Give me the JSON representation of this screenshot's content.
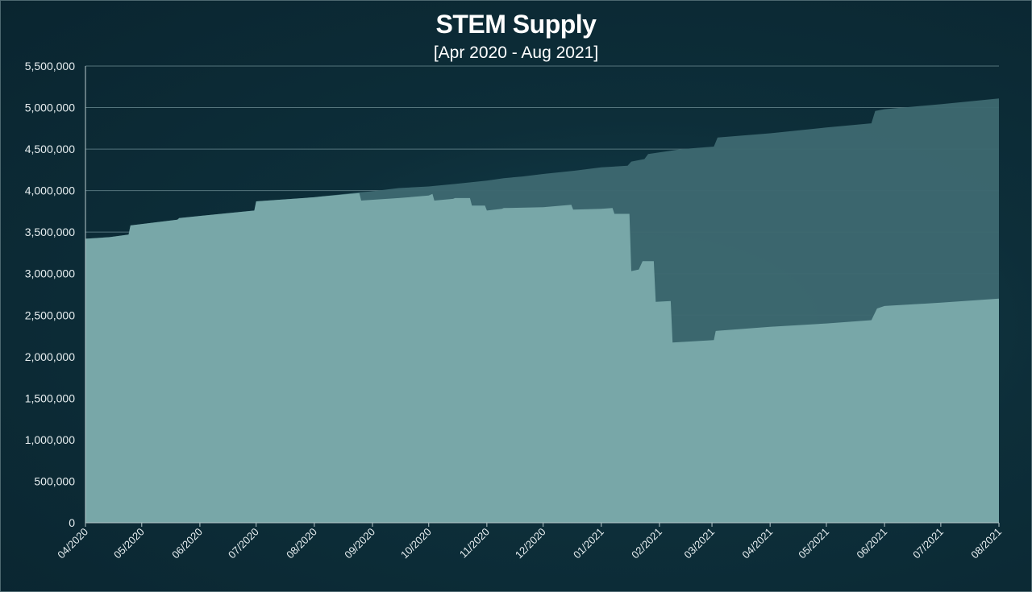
{
  "chart_data": {
    "type": "area",
    "title": "STEM Supply",
    "subtitle": "[Apr 2020 - Aug 2021]",
    "xlabel": "",
    "ylabel": "",
    "ylim": [
      0,
      5500000
    ],
    "yticks": [
      0,
      500000,
      1000000,
      1500000,
      2000000,
      2500000,
      3000000,
      3500000,
      4000000,
      4500000,
      5000000,
      5500000
    ],
    "ytick_labels": [
      "0",
      "500,000",
      "1,000,000",
      "1,500,000",
      "2,000,000",
      "2,500,000",
      "3,000,000",
      "3,500,000",
      "4,000,000",
      "4,500,000",
      "5,000,000",
      "5,500,000"
    ],
    "x_tick_labels": [
      "04/2020",
      "05/2020",
      "06/2020",
      "07/2020",
      "08/2020",
      "09/2020",
      "10/2020",
      "11/2020",
      "12/2020",
      "01/2021",
      "02/2021",
      "03/2021",
      "04/2021",
      "05/2021",
      "06/2021",
      "07/2021",
      "08/2021"
    ],
    "grid": true,
    "legend": "none",
    "colors": {
      "background": "#0c2b36",
      "front_area": "#7aa9aa",
      "back_area": "#3d6870",
      "grid": "#6e8e94",
      "text": "#ffffff"
    },
    "series": [
      {
        "x": [
          "2020-04-01",
          "2020-04-14",
          "2020-04-24",
          "2020-04-25",
          "2020-05-20",
          "2020-05-21",
          "2020-06-30",
          "2020-07-01",
          "2020-08-01",
          "2020-08-05",
          "2020-08-25",
          "2020-08-31",
          "2020-09-15",
          "2020-10-01",
          "2020-10-15",
          "2020-11-01",
          "2020-11-10",
          "2020-11-20",
          "2020-12-01",
          "2020-12-18",
          "2021-01-01",
          "2021-01-15",
          "2021-01-17",
          "2021-01-24",
          "2021-01-26",
          "2021-02-13",
          "2021-03-02",
          "2021-03-04",
          "2021-04-01",
          "2021-05-01",
          "2021-05-25",
          "2021-05-27",
          "2021-06-01",
          "2021-07-01",
          "2021-08-01"
        ],
        "values": [
          3420000,
          3440000,
          3470000,
          3580000,
          3650000,
          3670000,
          3760000,
          3870000,
          3920000,
          3930000,
          3980000,
          3990000,
          4030000,
          4050000,
          4080000,
          4120000,
          4150000,
          4170000,
          4200000,
          4240000,
          4280000,
          4300000,
          4350000,
          4380000,
          4440000,
          4500000,
          4530000,
          4640000,
          4690000,
          4760000,
          4810000,
          4960000,
          4980000,
          5040000,
          5110000
        ]
      },
      {
        "x": [
          "2020-04-01",
          "2020-04-14",
          "2020-04-24",
          "2020-04-25",
          "2020-05-20",
          "2020-05-21",
          "2020-06-30",
          "2020-07-01",
          "2020-08-01",
          "2020-08-05",
          "2020-08-25",
          "2020-08-26",
          "2020-09-15",
          "2020-10-01",
          "2020-10-03",
          "2020-10-04",
          "2020-10-14",
          "2020-10-15",
          "2020-10-23",
          "2020-10-24",
          "2020-10-31",
          "2020-11-01",
          "2020-11-09",
          "2020-11-10",
          "2020-12-01",
          "2020-12-16",
          "2020-12-17",
          "2021-01-01",
          "2021-01-07",
          "2021-01-08",
          "2021-01-16",
          "2021-01-17",
          "2021-01-21",
          "2021-01-23",
          "2021-01-29",
          "2021-01-30",
          "2021-02-07",
          "2021-02-08",
          "2021-03-02",
          "2021-03-03",
          "2021-04-01",
          "2021-05-01",
          "2021-05-25",
          "2021-05-28",
          "2021-06-01",
          "2021-07-01",
          "2021-08-01"
        ],
        "values": [
          3420000,
          3440000,
          3470000,
          3580000,
          3650000,
          3670000,
          3760000,
          3870000,
          3920000,
          3930000,
          3970000,
          3880000,
          3910000,
          3940000,
          3960000,
          3880000,
          3900000,
          3910000,
          3910000,
          3820000,
          3820000,
          3760000,
          3780000,
          3790000,
          3800000,
          3830000,
          3770000,
          3780000,
          3790000,
          3720000,
          3720000,
          3030000,
          3050000,
          3150000,
          3150000,
          2660000,
          2670000,
          2170000,
          2200000,
          2310000,
          2360000,
          2400000,
          2440000,
          2580000,
          2610000,
          2650000,
          2700000
        ]
      }
    ]
  }
}
